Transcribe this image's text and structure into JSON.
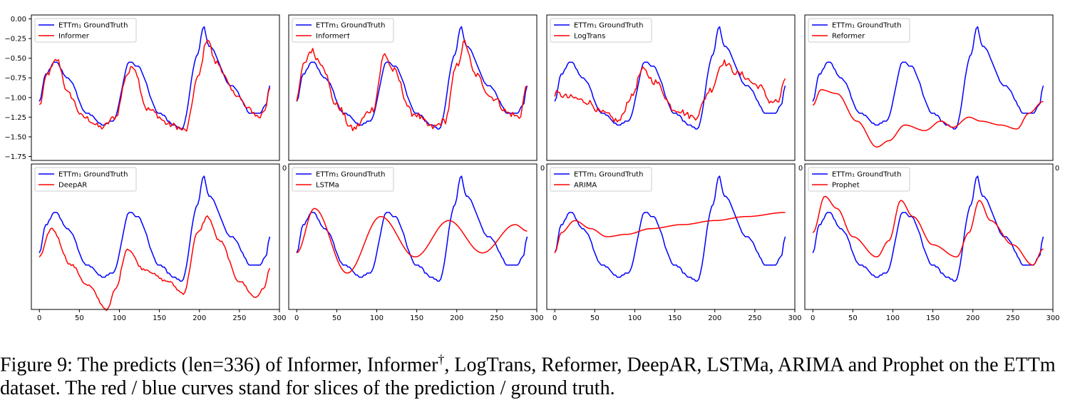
{
  "caption": {
    "label": "Figure 9:",
    "part1": "The predicts (len=336) of Informer, Informer",
    "dagger": "†",
    "part2": ", LogTrans, Reformer, DeepAR, LSTMa, ARIMA and Prophet on the ETTm dataset. The red / blue curves stand for slices of the prediction / ground truth."
  },
  "colors": {
    "ground_truth": "#0000ff",
    "prediction": "#ff0000"
  },
  "chart_data": [
    {
      "type": "line",
      "row": 0,
      "col": 0,
      "xlim": [
        -10,
        300
      ],
      "ylim": [
        -1.8,
        0.05
      ],
      "yticks": [
        0.0,
        -0.25,
        -0.5,
        -0.75,
        -1.0,
        -1.25,
        -1.5,
        -1.75
      ],
      "ytick_labels": [
        "0.00",
        "−0.25",
        "−0.50",
        "−0.75",
        "−1.00",
        "−1.25",
        "−1.50",
        "−1.75"
      ],
      "xticks": [],
      "xtick_labels": [],
      "legend": "top-left",
      "series": [
        {
          "name": "ETTm₁ GroundTruth",
          "role": "truth",
          "x": [
            0,
            8,
            20,
            35,
            60,
            80,
            92,
            113,
            122,
            150,
            168,
            178,
            198,
            205,
            212,
            240,
            265,
            275,
            283,
            288
          ],
          "y": [
            -1.05,
            -0.7,
            -0.55,
            -0.75,
            -1.2,
            -1.35,
            -1.3,
            -0.55,
            -0.6,
            -1.2,
            -1.35,
            -1.4,
            -0.45,
            -0.1,
            -0.35,
            -0.85,
            -1.2,
            -1.2,
            -1.1,
            -0.85
          ]
        },
        {
          "name": "Informer",
          "role": "pred",
          "x": [
            0,
            10,
            22,
            36,
            55,
            78,
            95,
            110,
            117,
            135,
            165,
            183,
            198,
            210,
            220,
            245,
            262,
            275,
            282,
            288
          ],
          "y": [
            -1.1,
            -0.7,
            -0.52,
            -0.95,
            -1.25,
            -1.38,
            -1.25,
            -0.7,
            -0.6,
            -1.15,
            -1.35,
            -1.42,
            -0.75,
            -0.25,
            -0.55,
            -0.95,
            -1.15,
            -1.25,
            -1.15,
            -0.85
          ]
        }
      ]
    },
    {
      "type": "line",
      "row": 0,
      "col": 1,
      "xlim": [
        -10,
        300
      ],
      "ylim": [
        -1.8,
        0.05
      ],
      "yticks": [],
      "ytick_labels": [],
      "xticks": [],
      "xtick_labels": [],
      "legend": "top-left",
      "series": [
        {
          "name": "ETTm₁ GroundTruth",
          "role": "truth",
          "x": [
            0,
            8,
            20,
            35,
            60,
            80,
            92,
            113,
            122,
            150,
            168,
            178,
            198,
            205,
            212,
            240,
            265,
            275,
            283,
            288
          ],
          "y": [
            -1.05,
            -0.7,
            -0.55,
            -0.75,
            -1.2,
            -1.35,
            -1.3,
            -0.55,
            -0.6,
            -1.2,
            -1.35,
            -1.4,
            -0.45,
            -0.1,
            -0.35,
            -0.85,
            -1.2,
            -1.2,
            -1.1,
            -0.85
          ]
        },
        {
          "name": "Informer†",
          "role": "pred",
          "x": [
            0,
            8,
            18,
            30,
            50,
            70,
            95,
            110,
            120,
            145,
            170,
            185,
            200,
            210,
            222,
            245,
            265,
            278,
            288
          ],
          "y": [
            -1.05,
            -0.6,
            -0.4,
            -0.55,
            -1.1,
            -1.4,
            -1.15,
            -0.45,
            -0.65,
            -1.2,
            -1.38,
            -1.3,
            -0.6,
            -0.3,
            -0.7,
            -1.0,
            -1.2,
            -1.25,
            -0.85
          ]
        }
      ]
    },
    {
      "type": "line",
      "row": 0,
      "col": 2,
      "xlim": [
        -10,
        300
      ],
      "ylim": [
        -1.8,
        0.05
      ],
      "yticks": [],
      "ytick_labels": [],
      "xticks": [],
      "xtick_labels": [],
      "legend": "top-left",
      "series": [
        {
          "name": "ETTm₁ GroundTruth",
          "role": "truth",
          "x": [
            0,
            8,
            20,
            35,
            60,
            80,
            92,
            113,
            122,
            150,
            168,
            178,
            198,
            205,
            212,
            240,
            265,
            275,
            283,
            288
          ],
          "y": [
            -1.05,
            -0.7,
            -0.55,
            -0.75,
            -1.2,
            -1.35,
            -1.3,
            -0.55,
            -0.6,
            -1.2,
            -1.35,
            -1.4,
            -0.45,
            -0.1,
            -0.35,
            -0.85,
            -1.2,
            -1.2,
            -1.1,
            -0.85
          ]
        },
        {
          "name": "LogTrans",
          "role": "pred",
          "x": [
            0,
            20,
            40,
            60,
            80,
            95,
            110,
            125,
            150,
            175,
            195,
            210,
            230,
            255,
            270,
            280,
            288
          ],
          "y": [
            -0.95,
            -1.0,
            -1.05,
            -1.2,
            -1.3,
            -1.0,
            -0.65,
            -0.8,
            -1.15,
            -1.25,
            -0.9,
            -0.55,
            -0.7,
            -0.85,
            -1.05,
            -1.05,
            -0.75
          ]
        }
      ]
    },
    {
      "type": "line",
      "row": 0,
      "col": 3,
      "xlim": [
        -10,
        300
      ],
      "ylim": [
        -1.8,
        0.05
      ],
      "yticks": [],
      "ytick_labels": [],
      "xticks": [],
      "xtick_labels": [],
      "legend": "top-left",
      "series": [
        {
          "name": "ETTm₁ GroundTruth",
          "role": "truth",
          "x": [
            0,
            8,
            20,
            35,
            60,
            80,
            92,
            113,
            122,
            150,
            168,
            178,
            198,
            205,
            212,
            240,
            265,
            275,
            283,
            288
          ],
          "y": [
            -1.05,
            -0.7,
            -0.55,
            -0.75,
            -1.2,
            -1.35,
            -1.3,
            -0.55,
            -0.6,
            -1.2,
            -1.35,
            -1.4,
            -0.45,
            -0.1,
            -0.35,
            -0.85,
            -1.2,
            -1.2,
            -1.1,
            -0.85
          ]
        },
        {
          "name": "Reformer",
          "role": "pred",
          "x": [
            0,
            10,
            30,
            55,
            80,
            95,
            115,
            140,
            160,
            175,
            195,
            210,
            235,
            255,
            270,
            288
          ],
          "y": [
            -1.1,
            -0.9,
            -0.95,
            -1.3,
            -1.63,
            -1.55,
            -1.35,
            -1.42,
            -1.3,
            -1.38,
            -1.25,
            -1.3,
            -1.35,
            -1.4,
            -1.2,
            -1.05
          ]
        }
      ]
    },
    {
      "type": "line",
      "row": 1,
      "col": 0,
      "xlim": [
        -10,
        300
      ],
      "ylim": [
        -1.75,
        0.05
      ],
      "yticks": [],
      "ytick_labels": [],
      "xticks": [
        0,
        50,
        100,
        150,
        200,
        250,
        300
      ],
      "xtick_labels": [
        "0",
        "50",
        "100",
        "150",
        "200",
        "250",
        "300"
      ],
      "legend": "top-left",
      "series": [
        {
          "name": "ETTm₁ GroundTruth",
          "role": "truth",
          "x": [
            0,
            8,
            20,
            35,
            60,
            80,
            92,
            113,
            122,
            150,
            168,
            178,
            198,
            205,
            212,
            240,
            265,
            275,
            283,
            288
          ],
          "y": [
            -1.05,
            -0.7,
            -0.55,
            -0.75,
            -1.2,
            -1.35,
            -1.3,
            -0.55,
            -0.6,
            -1.2,
            -1.35,
            -1.4,
            -0.45,
            -0.1,
            -0.35,
            -0.85,
            -1.2,
            -1.2,
            -1.1,
            -0.85
          ]
        },
        {
          "name": "DeepAR",
          "role": "pred",
          "x": [
            0,
            15,
            40,
            60,
            85,
            95,
            110,
            130,
            160,
            180,
            198,
            210,
            225,
            250,
            270,
            280,
            288
          ],
          "y": [
            -1.1,
            -0.75,
            -1.2,
            -1.45,
            -1.75,
            -1.5,
            -1.0,
            -1.25,
            -1.4,
            -1.55,
            -0.8,
            -0.6,
            -0.9,
            -1.4,
            -1.6,
            -1.5,
            -1.25
          ]
        }
      ]
    },
    {
      "type": "line",
      "row": 1,
      "col": 1,
      "xlim": [
        -10,
        300
      ],
      "ylim": [
        -1.75,
        0.05
      ],
      "yticks": [],
      "ytick_labels": [],
      "xticks": [
        0,
        50,
        100,
        150,
        200,
        250,
        300
      ],
      "xtick_labels": [
        "0",
        "50",
        "100",
        "150",
        "200",
        "250",
        "300"
      ],
      "legend": "top-left",
      "series": [
        {
          "name": "ETTm₁ GroundTruth",
          "role": "truth",
          "x": [
            0,
            8,
            20,
            35,
            60,
            80,
            92,
            113,
            122,
            150,
            168,
            178,
            198,
            205,
            212,
            240,
            265,
            275,
            283,
            288
          ],
          "y": [
            -1.05,
            -0.7,
            -0.55,
            -0.75,
            -1.2,
            -1.35,
            -1.3,
            -0.55,
            -0.6,
            -1.2,
            -1.35,
            -1.4,
            -0.45,
            -0.1,
            -0.35,
            -0.85,
            -1.2,
            -1.2,
            -1.1,
            -0.85
          ]
        },
        {
          "name": "LSTMa",
          "role": "pred",
          "x": [
            0,
            22,
            63,
            105,
            148,
            190,
            232,
            273,
            288
          ],
          "y": [
            -1.05,
            -0.5,
            -1.3,
            -0.6,
            -1.1,
            -0.65,
            -1.05,
            -0.7,
            -0.78
          ]
        }
      ]
    },
    {
      "type": "line",
      "row": 1,
      "col": 2,
      "xlim": [
        -10,
        300
      ],
      "ylim": [
        -1.75,
        0.05
      ],
      "yticks": [],
      "ytick_labels": [],
      "xticks": [
        0,
        50,
        100,
        150,
        200,
        250,
        300
      ],
      "xtick_labels": [
        "0",
        "50",
        "100",
        "150",
        "200",
        "250",
        "300"
      ],
      "legend": "top-left",
      "series": [
        {
          "name": "ETTm₁ GroundTruth",
          "role": "truth",
          "x": [
            0,
            8,
            20,
            35,
            60,
            80,
            92,
            113,
            122,
            150,
            168,
            178,
            198,
            205,
            212,
            240,
            265,
            275,
            283,
            288
          ],
          "y": [
            -1.05,
            -0.7,
            -0.55,
            -0.75,
            -1.2,
            -1.35,
            -1.3,
            -0.55,
            -0.6,
            -1.2,
            -1.35,
            -1.4,
            -0.45,
            -0.1,
            -0.35,
            -0.85,
            -1.2,
            -1.2,
            -1.1,
            -0.85
          ]
        },
        {
          "name": "ARIMA",
          "role": "pred",
          "x": [
            0,
            8,
            25,
            45,
            65,
            90,
            120,
            160,
            200,
            240,
            288
          ],
          "y": [
            -1.05,
            -0.8,
            -0.65,
            -0.75,
            -0.85,
            -0.82,
            -0.75,
            -0.7,
            -0.65,
            -0.6,
            -0.55
          ]
        }
      ]
    },
    {
      "type": "line",
      "row": 1,
      "col": 3,
      "xlim": [
        -10,
        300
      ],
      "ylim": [
        -1.75,
        0.05
      ],
      "yticks": [],
      "ytick_labels": [],
      "xticks": [
        0,
        50,
        100,
        150,
        200,
        250,
        300
      ],
      "xtick_labels": [
        "0",
        "50",
        "100",
        "150",
        "200",
        "250",
        "300"
      ],
      "legend": "top-left",
      "series": [
        {
          "name": "ETTm₁ GroundTruth",
          "role": "truth",
          "x": [
            0,
            8,
            20,
            35,
            60,
            80,
            92,
            113,
            122,
            150,
            168,
            178,
            198,
            205,
            212,
            240,
            265,
            275,
            283,
            288
          ],
          "y": [
            -1.05,
            -0.7,
            -0.55,
            -0.75,
            -1.2,
            -1.35,
            -1.3,
            -0.55,
            -0.6,
            -1.2,
            -1.35,
            -1.4,
            -0.45,
            -0.1,
            -0.35,
            -0.85,
            -1.2,
            -1.2,
            -1.1,
            -0.85
          ]
        },
        {
          "name": "Prophet",
          "role": "pred",
          "x": [
            0,
            15,
            30,
            50,
            80,
            95,
            110,
            125,
            150,
            180,
            195,
            208,
            222,
            250,
            275,
            288
          ],
          "y": [
            -0.8,
            -0.35,
            -0.5,
            -0.85,
            -1.1,
            -0.9,
            -0.4,
            -0.6,
            -0.95,
            -1.1,
            -0.8,
            -0.4,
            -0.65,
            -0.95,
            -1.2,
            -1.0
          ]
        }
      ]
    }
  ]
}
